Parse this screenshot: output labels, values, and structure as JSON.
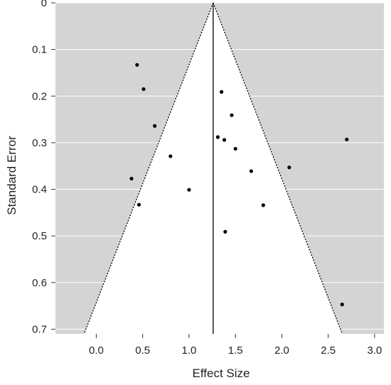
{
  "chart_data": {
    "type": "scatter",
    "subtype": "funnel-plot",
    "title": "",
    "xlabel": "Effect Size",
    "ylabel": "Standard Error",
    "xlim": [
      -0.44,
      3.1
    ],
    "ylim": [
      0.0,
      0.71
    ],
    "y_reversed": true,
    "grid": true,
    "x_ticks": [
      {
        "value": 0.0,
        "label": "0.0"
      },
      {
        "value": 0.5,
        "label": "0.5"
      },
      {
        "value": 1.0,
        "label": "1.0"
      },
      {
        "value": 1.5,
        "label": "1.5"
      },
      {
        "value": 2.0,
        "label": "2.0"
      },
      {
        "value": 2.5,
        "label": "2.5"
      },
      {
        "value": 3.0,
        "label": "3.0"
      }
    ],
    "y_ticks": [
      {
        "value": 0.0,
        "label": "0"
      },
      {
        "value": 0.1,
        "label": "0.1"
      },
      {
        "value": 0.2,
        "label": "0.2"
      },
      {
        "value": 0.3,
        "label": "0.3"
      },
      {
        "value": 0.4,
        "label": "0.4"
      },
      {
        "value": 0.5,
        "label": "0.5"
      },
      {
        "value": 0.6,
        "label": "0.6"
      },
      {
        "value": 0.7,
        "label": "0.7"
      }
    ],
    "pooled_effect": 1.26,
    "funnel_multiplier": 1.96,
    "colors": {
      "background": "#d4d4d4",
      "funnel": "#ffffff",
      "grid": "#ffffff",
      "points": "#000000",
      "lines": "#000000"
    },
    "points": [
      {
        "x": 0.44,
        "y": 0.133
      },
      {
        "x": 0.51,
        "y": 0.185
      },
      {
        "x": 0.63,
        "y": 0.264
      },
      {
        "x": 0.8,
        "y": 0.329
      },
      {
        "x": 0.38,
        "y": 0.377
      },
      {
        "x": 0.46,
        "y": 0.433
      },
      {
        "x": 1.0,
        "y": 0.401
      },
      {
        "x": 1.35,
        "y": 0.191
      },
      {
        "x": 1.46,
        "y": 0.241
      },
      {
        "x": 1.31,
        "y": 0.288
      },
      {
        "x": 1.38,
        "y": 0.294
      },
      {
        "x": 1.5,
        "y": 0.313
      },
      {
        "x": 1.67,
        "y": 0.361
      },
      {
        "x": 1.8,
        "y": 0.434
      },
      {
        "x": 1.39,
        "y": 0.491
      },
      {
        "x": 2.08,
        "y": 0.353
      },
      {
        "x": 2.7,
        "y": 0.293
      },
      {
        "x": 2.65,
        "y": 0.647
      }
    ]
  }
}
